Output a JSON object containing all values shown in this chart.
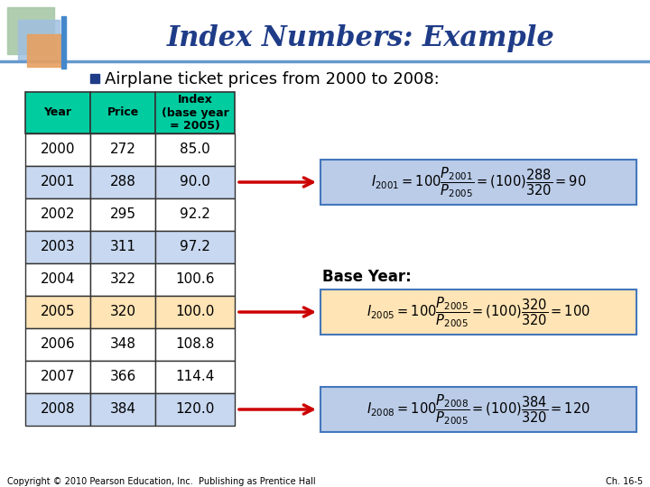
{
  "title": "Index Numbers: Example",
  "subtitle": "Airplane ticket prices from 2000 to 2008:",
  "table_data": [
    [
      2000,
      272,
      "85.0"
    ],
    [
      2001,
      288,
      "90.0"
    ],
    [
      2002,
      295,
      "92.2"
    ],
    [
      2003,
      311,
      "97.2"
    ],
    [
      2004,
      322,
      "100.6"
    ],
    [
      2005,
      320,
      "100.0"
    ],
    [
      2006,
      348,
      "108.8"
    ],
    [
      2007,
      366,
      "114.4"
    ],
    [
      2008,
      384,
      "120.0"
    ]
  ],
  "header_bg": "#00CCA0",
  "row_bg_blue": "#C8D8F0",
  "row_bg_white": "#FFFFFF",
  "row_bg_2005": "#FFE4B5",
  "title_color": "#1F3C88",
  "bullet_color": "#1F3C88",
  "box_blue_bg": "#BBCCE8",
  "box_orange_bg": "#FFE4B5",
  "arrow_color": "#CC0000",
  "border_color": "#333333",
  "header_line_color": "#6699CC",
  "base_year_label": "Base Year:",
  "copyright": "Copyright © 2010 Pearson Education, Inc.  Publishing as Prentice Hall",
  "chapter": "Ch. 16-5",
  "bg_color": "#FFFFFF",
  "sq1_color": "#A8C8A8",
  "sq2_color": "#A0C0E0",
  "sq3_color": "#E8A060"
}
